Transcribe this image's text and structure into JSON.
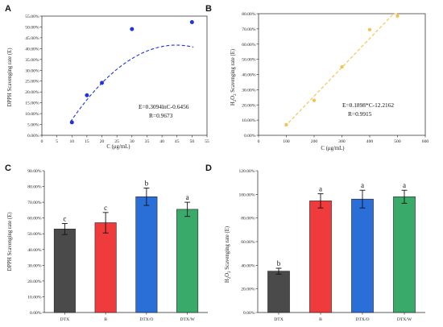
{
  "chart_data": [
    {
      "type": "scatter",
      "panel_label": "A",
      "ylabel": "DPPH Scavenging rate (E)",
      "xlabel": "C (μg/mL)",
      "xlim": [
        0,
        55
      ],
      "ylim": [
        0,
        55
      ],
      "xticks": [
        0,
        5,
        10,
        15,
        20,
        25,
        30,
        35,
        40,
        45,
        50,
        55
      ],
      "yticks": [
        0,
        5,
        10,
        15,
        20,
        25,
        30,
        35,
        40,
        45,
        50,
        55
      ],
      "ytick_labels": [
        "0.00%",
        "5.00%",
        "10.00%",
        "15.00%",
        "20.00%",
        "25.00%",
        "30.00%",
        "35.00%",
        "40.00%",
        "45.00%",
        "50.00%",
        "55.00%"
      ],
      "points": [
        {
          "x": 10,
          "y": 6.0
        },
        {
          "x": 15,
          "y": 18.5
        },
        {
          "x": 20,
          "y": 24.2
        },
        {
          "x": 30,
          "y": 49.0
        },
        {
          "x": 50,
          "y": 52.2
        }
      ],
      "fit": "log",
      "fit_coef": [
        30.94,
        -64.56
      ],
      "equation": "E=0.3094lnC-0.6456",
      "r_value": "R=0.9673",
      "color": "#2233dd",
      "grid": false
    },
    {
      "type": "scatter",
      "panel_label": "B",
      "ylabel_pre": "H",
      "ylabel_sub1": "2",
      "ylabel_mid": "O",
      "ylabel_sub2": "2",
      "ylabel_post": " Scavenging rate (E)",
      "xlabel": "C (μg/mL)",
      "xlim": [
        0,
        600
      ],
      "ylim": [
        0,
        80
      ],
      "xticks": [
        0,
        100,
        200,
        300,
        400,
        500,
        600
      ],
      "yticks": [
        0,
        10,
        20,
        30,
        40,
        50,
        60,
        70,
        80
      ],
      "ytick_labels": [
        "0.00%",
        "10.00%",
        "20.00%",
        "30.00%",
        "40.00%",
        "50.00%",
        "60.00%",
        "70.00%",
        "80.00%"
      ],
      "points": [
        {
          "x": 100,
          "y": 7.0
        },
        {
          "x": 200,
          "y": 23.0
        },
        {
          "x": 300,
          "y": 45.0
        },
        {
          "x": 400,
          "y": 69.5
        },
        {
          "x": 500,
          "y": 78.5
        }
      ],
      "fit": "linear",
      "fit_coef": [
        0.1898,
        -12.2162
      ],
      "equation": "E=0.1898*C-12.2162",
      "r_value": "R=0.9915",
      "color": "#f2c14e",
      "grid": false
    },
    {
      "type": "bar",
      "panel_label": "C",
      "ylabel": "DPPH Scavenging rate (E)",
      "categories": [
        "DTX",
        "B",
        "DTX/O",
        "DTX/W"
      ],
      "values": [
        53.0,
        57.0,
        73.5,
        65.5
      ],
      "errors": [
        3.5,
        6.5,
        5.5,
        4.5
      ],
      "letters": [
        "c",
        "c",
        "b",
        "a"
      ],
      "colors": [
        "#4a4a4a",
        "#ef3b3b",
        "#2a6ed8",
        "#3aaa6a"
      ],
      "ylim": [
        0,
        90
      ],
      "yticks": [
        0,
        10,
        20,
        30,
        40,
        50,
        60,
        70,
        80,
        90
      ],
      "ytick_labels": [
        "0.00%",
        "10.00%",
        "20.00%",
        "30.00%",
        "40.00%",
        "50.00%",
        "60.00%",
        "70.00%",
        "80.00%",
        "90.00%"
      ],
      "grid": false
    },
    {
      "type": "bar",
      "panel_label": "D",
      "ylabel_pre": "H",
      "ylabel_sub1": "2",
      "ylabel_mid": "O",
      "ylabel_sub2": "2",
      "ylabel_post": " Scavenging rate (E)",
      "categories": [
        "DTX",
        "B",
        "DTX/O",
        "DTX/W"
      ],
      "values": [
        35.0,
        94.5,
        96.0,
        98.0
      ],
      "errors": [
        2.5,
        6.0,
        7.5,
        5.5
      ],
      "letters": [
        "b",
        "a",
        "a",
        "a"
      ],
      "colors": [
        "#4a4a4a",
        "#ef3b3b",
        "#2a6ed8",
        "#3aaa6a"
      ],
      "ylim": [
        0,
        120
      ],
      "yticks": [
        0,
        20,
        40,
        60,
        80,
        100,
        120
      ],
      "ytick_labels": [
        "0.00%",
        "20.00%",
        "40.00%",
        "60.00%",
        "80.00%",
        "100.00%",
        "120.00%"
      ],
      "grid": false
    }
  ]
}
